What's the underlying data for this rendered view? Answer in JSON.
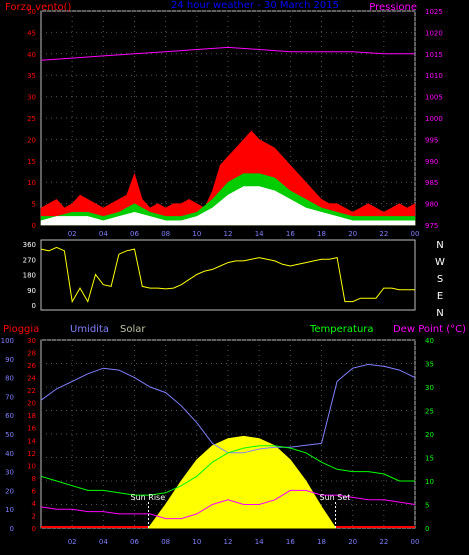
{
  "chart_data": [
    {
      "type": "area",
      "title": "24 hour weather - 30 March 2015",
      "ylabel_left": "Forza vento()",
      "ylabel_right": "Pressione",
      "ylim_left": [
        0,
        50
      ],
      "ylim_right": [
        975,
        1025
      ],
      "left_ticks": [
        0,
        5,
        10,
        15,
        20,
        25,
        30,
        35,
        40,
        45,
        50
      ],
      "right_ticks": [
        975,
        980,
        985,
        990,
        995,
        1000,
        1005,
        1010,
        1015,
        1020,
        1025
      ],
      "x_ticks": [
        "02",
        "04",
        "06",
        "08",
        "10",
        "12",
        "14",
        "16",
        "18",
        "20",
        "22",
        "00"
      ],
      "series": [
        {
          "name": "Forza vento",
          "color": "#ff0000",
          "x": [
            0,
            0.5,
            1,
            1.5,
            2,
            2.5,
            3,
            3.5,
            4,
            4.5,
            5,
            5.5,
            6,
            6.5,
            7,
            7.5,
            8,
            8.5,
            9,
            9.5,
            10,
            10.5,
            11,
            11.5,
            12,
            12.5,
            13,
            13.5,
            14,
            14.5,
            15,
            15.5,
            16,
            16.5,
            17,
            17.5,
            18,
            18.5,
            19,
            19.5,
            20,
            20.5,
            21,
            21.5,
            22,
            22.5,
            23,
            23.5,
            24
          ],
          "values": [
            4,
            5,
            6,
            4,
            5,
            7,
            6,
            5,
            4,
            5,
            6,
            7,
            12,
            6,
            4,
            5,
            4,
            5,
            5,
            6,
            5,
            4,
            8,
            14,
            16,
            18,
            20,
            22,
            20,
            19,
            18,
            16,
            14,
            12,
            10,
            8,
            6,
            5,
            5,
            4,
            3,
            4,
            5,
            4,
            3,
            4,
            5,
            4,
            5
          ]
        },
        {
          "name": "Raffica",
          "color": "#00cc00",
          "x": [
            0,
            1,
            2,
            3,
            4,
            5,
            6,
            7,
            8,
            9,
            10,
            11,
            12,
            13,
            14,
            15,
            16,
            17,
            18,
            19,
            20,
            21,
            22,
            23,
            24
          ],
          "values": [
            2,
            2,
            3,
            3,
            2,
            3,
            5,
            3,
            2,
            2,
            3,
            6,
            10,
            12,
            12,
            11,
            8,
            6,
            4,
            3,
            2,
            2,
            2,
            2,
            2
          ]
        },
        {
          "name": "Vento medio",
          "color": "#ffffff",
          "x": [
            0,
            1,
            2,
            3,
            4,
            5,
            6,
            7,
            8,
            9,
            10,
            11,
            12,
            13,
            14,
            15,
            16,
            17,
            18,
            19,
            20,
            21,
            22,
            23,
            24
          ],
          "values": [
            1,
            2,
            2,
            2,
            1,
            2,
            3,
            2,
            1,
            1,
            2,
            4,
            7,
            9,
            9,
            8,
            6,
            4,
            3,
            2,
            1,
            1,
            1,
            1,
            1
          ]
        },
        {
          "name": "Pressione",
          "color": "#ff00ff",
          "axis": "right",
          "x": [
            0,
            2,
            4,
            6,
            8,
            10,
            12,
            14,
            16,
            18,
            20,
            22,
            24
          ],
          "values": [
            1013.5,
            1014,
            1014.5,
            1015,
            1015.5,
            1016,
            1016.5,
            1016,
            1015.5,
            1015.5,
            1015.5,
            1015,
            1015
          ]
        }
      ]
    },
    {
      "type": "line",
      "ylim_left": [
        0,
        360
      ],
      "left_ticks": [
        0,
        90,
        180,
        270,
        360
      ],
      "right_labels": [
        "N",
        "W",
        "S",
        "E",
        "N"
      ],
      "series": [
        {
          "name": "Direzione vento",
          "color": "#ffff00",
          "x": [
            0,
            0.5,
            1,
            1.5,
            2,
            2.5,
            3,
            3.5,
            4,
            4.5,
            5,
            5.5,
            6,
            6.5,
            7,
            7.5,
            8,
            8.5,
            9,
            9.5,
            10,
            10.5,
            11,
            11.5,
            12,
            12.5,
            13,
            13.5,
            14,
            14.5,
            15,
            15.5,
            16,
            16.5,
            17,
            17.5,
            18,
            18.5,
            19,
            19.5,
            20,
            20.5,
            21,
            21.5,
            22,
            22.5,
            23,
            23.5,
            24
          ],
          "values": [
            330,
            320,
            340,
            320,
            20,
            100,
            20,
            180,
            120,
            110,
            300,
            320,
            330,
            110,
            100,
            100,
            95,
            100,
            120,
            150,
            180,
            200,
            210,
            230,
            250,
            260,
            260,
            270,
            280,
            270,
            260,
            240,
            230,
            240,
            250,
            260,
            270,
            270,
            280,
            20,
            20,
            40,
            40,
            40,
            100,
            100,
            90,
            90,
            90
          ]
        }
      ]
    },
    {
      "type": "area",
      "labels": {
        "rain": "Pioggia",
        "humidity": "Umidita",
        "solar": "Solar",
        "temperature": "Temperatura",
        "dew_point": "Dew Point (°C)"
      },
      "annotations": [
        "Sun Rise",
        "Sun Set"
      ],
      "sunrise_hour": 6.9,
      "sunset_hour": 18.9,
      "humidity_ticks": [
        0,
        10,
        20,
        30,
        40,
        50,
        60,
        70,
        80,
        90,
        100
      ],
      "rain_ticks": [
        0,
        2,
        4,
        6,
        8,
        10,
        12,
        14,
        16,
        18,
        20,
        22,
        24,
        26,
        28,
        30
      ],
      "temp_ticks": [
        0,
        5,
        10,
        15,
        20,
        25,
        30,
        35,
        40
      ],
      "x_ticks": [
        "02",
        "04",
        "06",
        "08",
        "10",
        "12",
        "14",
        "16",
        "18",
        "20",
        "22",
        "00"
      ],
      "ylim_humidity": [
        0,
        100
      ],
      "ylim_temp": [
        0,
        40
      ],
      "series": [
        {
          "name": "Umidita",
          "color": "#8080ff",
          "x": [
            0,
            1,
            2,
            3,
            4,
            5,
            6,
            7,
            8,
            9,
            10,
            11,
            12,
            13,
            14,
            15,
            16,
            17,
            18,
            19,
            20,
            21,
            22,
            23,
            24
          ],
          "values": [
            68,
            74,
            78,
            82,
            85,
            84,
            80,
            75,
            72,
            65,
            56,
            45,
            40,
            40,
            42,
            43,
            43,
            44,
            45,
            78,
            85,
            87,
            86,
            84,
            80
          ]
        },
        {
          "name": "Temperatura",
          "color": "#00ff00",
          "x": [
            0,
            1,
            2,
            3,
            4,
            5,
            6,
            7,
            8,
            9,
            10,
            11,
            12,
            13,
            14,
            15,
            16,
            17,
            18,
            19,
            20,
            21,
            22,
            23,
            24
          ],
          "values": [
            11,
            10,
            9,
            8,
            8,
            7.5,
            7,
            7,
            7.5,
            9,
            11,
            14,
            16,
            17,
            17.5,
            17.5,
            17,
            16,
            14,
            12.5,
            12,
            12,
            11.5,
            10,
            10
          ]
        },
        {
          "name": "Dew Point",
          "color": "#ff00ff",
          "x": [
            0,
            1,
            2,
            3,
            4,
            5,
            6,
            7,
            8,
            9,
            10,
            11,
            12,
            13,
            14,
            15,
            16,
            17,
            18,
            19,
            20,
            21,
            22,
            23,
            24
          ],
          "values": [
            4.5,
            4,
            4,
            3.5,
            3.5,
            3,
            3,
            3,
            2,
            2,
            3,
            5,
            6,
            5,
            5,
            6,
            8,
            8,
            7,
            7,
            6.5,
            6,
            6,
            5.5,
            5
          ]
        },
        {
          "name": "Solar",
          "color": "#ffff00",
          "axis": "temp",
          "x": [
            6.9,
            8,
            9,
            10,
            11,
            12,
            13,
            14,
            15,
            16,
            17,
            18,
            18.9
          ],
          "values": [
            0,
            5,
            10,
            14.5,
            17.5,
            19,
            19.5,
            19,
            17.5,
            14.5,
            10,
            4.5,
            0
          ]
        }
      ]
    }
  ]
}
